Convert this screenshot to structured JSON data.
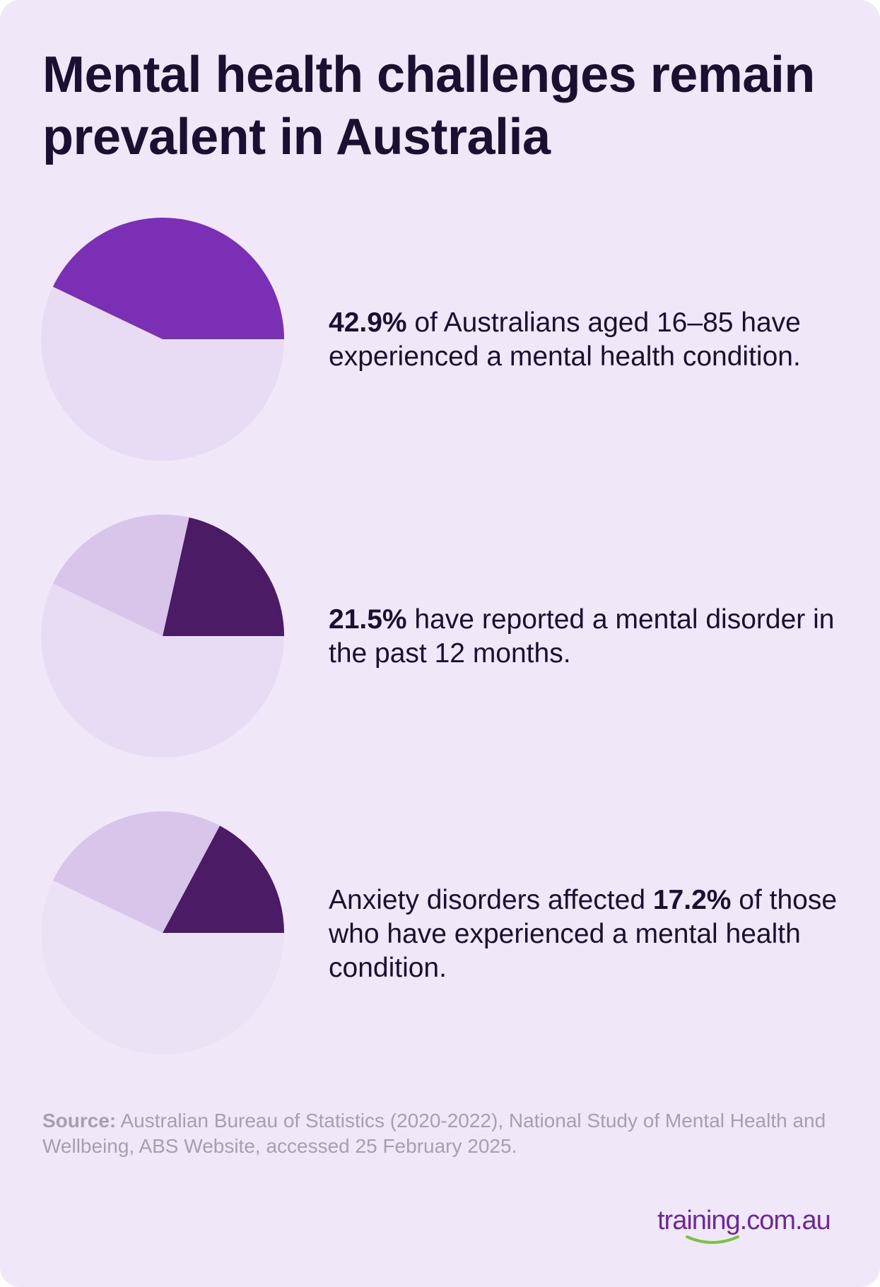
{
  "title": "Mental health challenges remain prevalent in Australia",
  "colors": {
    "background": "#f0e8f8",
    "slice_primary": "#7b2fb5",
    "slice_dark": "#4b1b66",
    "slice_light": "#d9c4ea",
    "pie_base": "#e8dcf4",
    "pie_base_faint": "#ece2f6"
  },
  "stats": [
    {
      "highlight": "42.9%",
      "before": "",
      "after": " of Australians aged 16–85 have experienced a mental health condition."
    },
    {
      "highlight": "21.5%",
      "before": "",
      "after": " have reported a mental disorder in the past 12 months."
    },
    {
      "highlight": "17.2%",
      "before": "Anxiety disorders affected ",
      "after": " of those who have experienced a mental health condition."
    }
  ],
  "chart_data": [
    {
      "type": "pie",
      "slices": [
        {
          "value": 42.9,
          "color": "#7b2fb5"
        },
        {
          "value": 57.1,
          "color": "#e8dcf4"
        }
      ]
    },
    {
      "type": "pie",
      "slices": [
        {
          "value": 21.5,
          "color": "#4b1b66"
        },
        {
          "value": 21.4,
          "color": "#d9c4ea"
        },
        {
          "value": 57.1,
          "color": "#e8dcf4"
        }
      ]
    },
    {
      "type": "pie",
      "slices": [
        {
          "value": 17.2,
          "color": "#4b1b66"
        },
        {
          "value": 25.7,
          "color": "#d9c4ea"
        },
        {
          "value": 57.1,
          "color": "#ece2f6"
        }
      ]
    }
  ],
  "source": {
    "label": "Source:",
    "text": " Australian Bureau of Statistics (2020-2022), National Study of Mental Health and Wellbeing, ABS Website, accessed 25 February 2025."
  },
  "logo": {
    "text": "training.com.au"
  }
}
